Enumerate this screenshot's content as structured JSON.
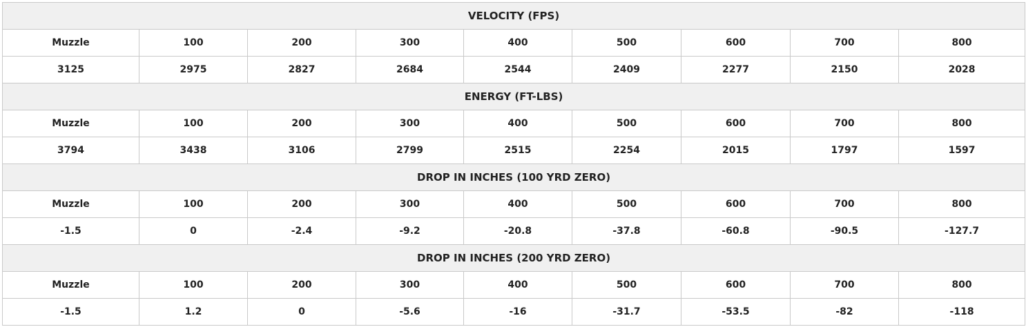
{
  "sections": [
    {
      "title": "VELOCITY (FPS)",
      "headers": [
        "Muzzle",
        "100",
        "200",
        "300",
        "400",
        "500",
        "600",
        "700",
        "800"
      ],
      "values": [
        "3125",
        "2975",
        "2827",
        "2684",
        "2544",
        "2409",
        "2277",
        "2150",
        "2028"
      ]
    },
    {
      "title": "ENERGY (FT-LBS)",
      "headers": [
        "Muzzle",
        "100",
        "200",
        "300",
        "400",
        "500",
        "600",
        "700",
        "800"
      ],
      "values": [
        "3794",
        "3438",
        "3106",
        "2799",
        "2515",
        "2254",
        "2015",
        "1797",
        "1597"
      ]
    },
    {
      "title": "DROP IN INCHES (100 YRD ZERO)",
      "headers": [
        "Muzzle",
        "100",
        "200",
        "300",
        "400",
        "500",
        "600",
        "700",
        "800"
      ],
      "values": [
        "-1.5",
        "0",
        "-2.4",
        "-9.2",
        "-20.8",
        "-37.8",
        "-60.8",
        "-90.5",
        "-127.7"
      ]
    },
    {
      "title": "DROP IN INCHES (200 YRD ZERO)",
      "headers": [
        "Muzzle",
        "100",
        "200",
        "300",
        "400",
        "500",
        "600",
        "700",
        "800"
      ],
      "values": [
        "-1.5",
        "1.2",
        "0",
        "-5.6",
        "-16",
        "-31.7",
        "-53.5",
        "-82",
        "-118"
      ]
    }
  ]
}
